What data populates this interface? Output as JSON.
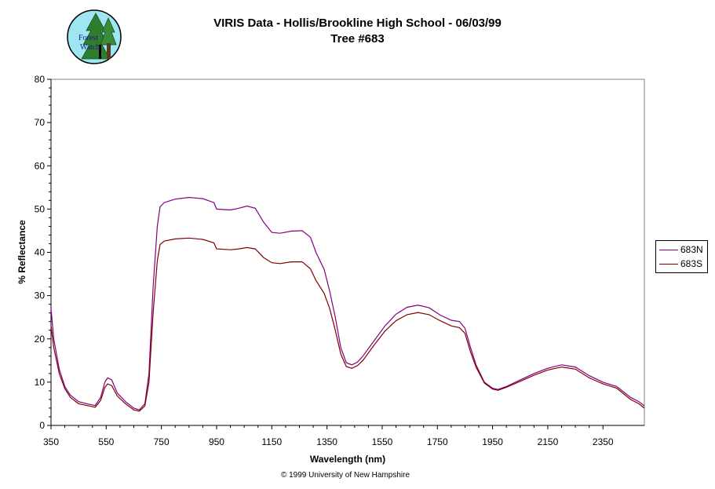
{
  "logo": {
    "text_line1": "Forest",
    "text_line2": "Watch"
  },
  "footer": {
    "copyright": "© 1999 University of New Hampshire"
  },
  "chart_data": {
    "type": "line",
    "title": "VIRIS Data - Hollis/Brookline High School - 06/03/99",
    "subtitle": "Tree #683",
    "xlabel": "Wavelength (nm)",
    "ylabel": "% Reflectance",
    "xlim": [
      350,
      2500
    ],
    "ylim": [
      0,
      80
    ],
    "xticks": [
      350,
      550,
      750,
      950,
      1150,
      1350,
      1550,
      1750,
      1950,
      2150,
      2350
    ],
    "yticks": [
      0,
      10,
      20,
      30,
      40,
      50,
      60,
      70,
      80
    ],
    "grid": false,
    "legend_position": "right",
    "series": [
      {
        "name": "683N",
        "color": "#800080",
        "points": [
          [
            350,
            27
          ],
          [
            360,
            20
          ],
          [
            380,
            13
          ],
          [
            400,
            9
          ],
          [
            420,
            7
          ],
          [
            450,
            5.5
          ],
          [
            480,
            5
          ],
          [
            510,
            4.6
          ],
          [
            530,
            6.5
          ],
          [
            545,
            10
          ],
          [
            555,
            11
          ],
          [
            570,
            10.5
          ],
          [
            590,
            7.5
          ],
          [
            620,
            5.5
          ],
          [
            650,
            4
          ],
          [
            670,
            3.6
          ],
          [
            690,
            5
          ],
          [
            705,
            12
          ],
          [
            720,
            32
          ],
          [
            735,
            46
          ],
          [
            745,
            50.5
          ],
          [
            760,
            51.5
          ],
          [
            800,
            52.3
          ],
          [
            850,
            52.7
          ],
          [
            900,
            52.4
          ],
          [
            940,
            51.5
          ],
          [
            950,
            50
          ],
          [
            1000,
            49.8
          ],
          [
            1030,
            50.2
          ],
          [
            1060,
            50.7
          ],
          [
            1090,
            50.2
          ],
          [
            1120,
            47
          ],
          [
            1150,
            44.6
          ],
          [
            1180,
            44.4
          ],
          [
            1220,
            44.9
          ],
          [
            1260,
            45
          ],
          [
            1290,
            43.5
          ],
          [
            1310,
            40
          ],
          [
            1340,
            36
          ],
          [
            1360,
            31
          ],
          [
            1380,
            25
          ],
          [
            1400,
            18
          ],
          [
            1420,
            14.5
          ],
          [
            1440,
            14
          ],
          [
            1460,
            14.6
          ],
          [
            1480,
            16
          ],
          [
            1520,
            19.5
          ],
          [
            1560,
            23
          ],
          [
            1600,
            25.7
          ],
          [
            1640,
            27.3
          ],
          [
            1680,
            27.8
          ],
          [
            1720,
            27.2
          ],
          [
            1760,
            25.5
          ],
          [
            1800,
            24.3
          ],
          [
            1830,
            24
          ],
          [
            1850,
            22.5
          ],
          [
            1870,
            18
          ],
          [
            1890,
            14
          ],
          [
            1920,
            10
          ],
          [
            1950,
            8.6
          ],
          [
            1970,
            8.3
          ],
          [
            2000,
            9
          ],
          [
            2050,
            10.5
          ],
          [
            2100,
            12
          ],
          [
            2150,
            13.2
          ],
          [
            2200,
            14
          ],
          [
            2250,
            13.5
          ],
          [
            2300,
            11.5
          ],
          [
            2350,
            10
          ],
          [
            2400,
            9
          ],
          [
            2450,
            6.5
          ],
          [
            2480,
            5.5
          ],
          [
            2500,
            4.5
          ]
        ]
      },
      {
        "name": "683S",
        "color": "#800000",
        "points": [
          [
            350,
            23
          ],
          [
            360,
            18
          ],
          [
            380,
            12
          ],
          [
            400,
            8.5
          ],
          [
            420,
            6.5
          ],
          [
            450,
            5
          ],
          [
            480,
            4.6
          ],
          [
            510,
            4.2
          ],
          [
            530,
            5.8
          ],
          [
            545,
            8.8
          ],
          [
            555,
            9.6
          ],
          [
            570,
            9.2
          ],
          [
            590,
            6.8
          ],
          [
            620,
            5
          ],
          [
            650,
            3.6
          ],
          [
            670,
            3.3
          ],
          [
            690,
            4.5
          ],
          [
            705,
            10
          ],
          [
            720,
            26
          ],
          [
            735,
            38
          ],
          [
            745,
            41.8
          ],
          [
            760,
            42.6
          ],
          [
            800,
            43.1
          ],
          [
            850,
            43.3
          ],
          [
            900,
            43
          ],
          [
            940,
            42.2
          ],
          [
            950,
            40.8
          ],
          [
            1000,
            40.6
          ],
          [
            1030,
            40.8
          ],
          [
            1060,
            41.1
          ],
          [
            1090,
            40.8
          ],
          [
            1120,
            38.8
          ],
          [
            1150,
            37.6
          ],
          [
            1180,
            37.4
          ],
          [
            1220,
            37.8
          ],
          [
            1260,
            37.8
          ],
          [
            1290,
            36.2
          ],
          [
            1310,
            33.5
          ],
          [
            1340,
            30.5
          ],
          [
            1360,
            27
          ],
          [
            1380,
            22
          ],
          [
            1400,
            16.5
          ],
          [
            1420,
            13.6
          ],
          [
            1440,
            13.2
          ],
          [
            1460,
            13.8
          ],
          [
            1480,
            15
          ],
          [
            1520,
            18.5
          ],
          [
            1560,
            21.8
          ],
          [
            1600,
            24.2
          ],
          [
            1640,
            25.6
          ],
          [
            1680,
            26.1
          ],
          [
            1720,
            25.6
          ],
          [
            1760,
            24.2
          ],
          [
            1800,
            23
          ],
          [
            1830,
            22.6
          ],
          [
            1850,
            21.3
          ],
          [
            1870,
            17
          ],
          [
            1890,
            13.5
          ],
          [
            1920,
            9.8
          ],
          [
            1950,
            8.4
          ],
          [
            1970,
            8.1
          ],
          [
            2000,
            8.8
          ],
          [
            2050,
            10.2
          ],
          [
            2100,
            11.6
          ],
          [
            2150,
            12.8
          ],
          [
            2200,
            13.5
          ],
          [
            2250,
            13
          ],
          [
            2300,
            11
          ],
          [
            2350,
            9.6
          ],
          [
            2400,
            8.6
          ],
          [
            2450,
            6
          ],
          [
            2480,
            5
          ],
          [
            2500,
            4
          ]
        ]
      }
    ]
  }
}
